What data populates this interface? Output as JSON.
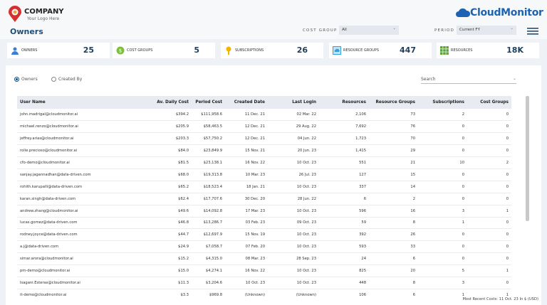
{
  "header": {
    "company": "COMPANY",
    "tagline": "Your Logo Here",
    "brand": "CloudMonitor",
    "page_title": "Owners"
  },
  "filters": [
    {
      "label": "COST GROUP",
      "value": "All"
    },
    {
      "label": "PERIOD",
      "value": "Current FY"
    }
  ],
  "kpis": [
    {
      "label": "OWNERS",
      "value": "25"
    },
    {
      "label": "COST GROUPS",
      "value": "5"
    },
    {
      "label": "SUBSCRIPTIONS",
      "value": "26"
    },
    {
      "label": "RESOURCE GROUPS",
      "value": "447"
    },
    {
      "label": "RESOURCES",
      "value": "18K"
    }
  ],
  "view_options": [
    "Owners",
    "Created By"
  ],
  "search_placeholder": "Search",
  "table": {
    "columns": [
      "User Name",
      "Av. Daily Cost",
      "Period Cost",
      "Created Date",
      "Last Login",
      "Resources",
      "Resource Groups",
      "Subscriptions",
      "Cost Groups"
    ],
    "rows": [
      [
        "john.madrigal@cloudmonitor.ai",
        "$394.2",
        "$111,958.6",
        "11 Dec. 21",
        "02 Mar. 22",
        "2,106",
        "73",
        "2",
        "0"
      ],
      [
        "michael.renzo@cloudmonitor.ai",
        "$205.9",
        "$58,463.5",
        "12 Dec. 21",
        "29 Aug. 22",
        "7,692",
        "76",
        "0",
        "0"
      ],
      [
        "jeffrey.arias@cloudmonitor.ai",
        "$203.3",
        "$57,750.2",
        "12 Dec. 21",
        "04 Jun. 22",
        "1,723",
        "70",
        "0",
        "0"
      ],
      [
        "rolie.precioso@cloudmonitor.ai",
        "$84.0",
        "$23,849.9",
        "15 Nov. 21",
        "20 Jun. 23",
        "1,415",
        "29",
        "0",
        "0"
      ],
      [
        "cfo-demo@cloudmonitor.ai",
        "$81.5",
        "$23,138.1",
        "16 Nov. 22",
        "10 Oct. 23",
        "551",
        "21",
        "10",
        "2"
      ],
      [
        "sanjay.jagannadhan@data-driven.com",
        "$68.0",
        "$19,313.8",
        "10 Mar. 23",
        "26 Jul. 23",
        "127",
        "15",
        "0",
        "0"
      ],
      [
        "rohith.karupalli@data-driven.com",
        "$65.2",
        "$18,523.4",
        "18 Jan. 21",
        "10 Oct. 23",
        "337",
        "14",
        "0",
        "0"
      ],
      [
        "karan.singh@data-driven.com",
        "$62.4",
        "$17,707.6",
        "30 Dec. 20",
        "28 Jun. 22",
        "6",
        "2",
        "0",
        "0"
      ],
      [
        "andrew.zhang@cloudmonitor.ai",
        "$49.6",
        "$14,092.8",
        "17 Mar. 23",
        "10 Oct. 23",
        "596",
        "16",
        "3",
        "1"
      ],
      [
        "lucas.gomez@data-driven.com",
        "$46.8",
        "$13,286.7",
        "03 Feb. 23",
        "09 Oct. 23",
        "59",
        "8",
        "1",
        "0"
      ],
      [
        "rodney.joyce@data-driven.com",
        "$44.7",
        "$12,697.9",
        "15 Nov. 19",
        "10 Oct. 23",
        "392",
        "26",
        "0",
        "0"
      ],
      [
        "a.j@data-driven.com",
        "$24.9",
        "$7,058.7",
        "07 Feb. 20",
        "10 Oct. 23",
        "593",
        "33",
        "0",
        "0"
      ],
      [
        "simar.arora@cloudmonitor.ai",
        "$15.2",
        "$4,315.0",
        "08 Mar. 23",
        "28 Sep. 23",
        "24",
        "6",
        "0",
        "0"
      ],
      [
        "pm-demo@cloudmonitor.ai",
        "$15.0",
        "$4,274.1",
        "16 Nov. 22",
        "10 Oct. 23",
        "825",
        "20",
        "5",
        "1"
      ],
      [
        "Isagani.Esteras@cloudmonitor.ai",
        "$11.3",
        "$3,204.6",
        "10 Oct. 23",
        "10 Oct. 23",
        "448",
        "8",
        "3",
        "0"
      ],
      [
        "it-demo@cloudmonitor.ai",
        "$3.3",
        "$969.8",
        "(Unknown)",
        "(Unknown)",
        "106",
        "6",
        "1",
        "1"
      ]
    ]
  },
  "footer": "Most Recent Costs: 11 Oct. 23 In $ (USD)"
}
